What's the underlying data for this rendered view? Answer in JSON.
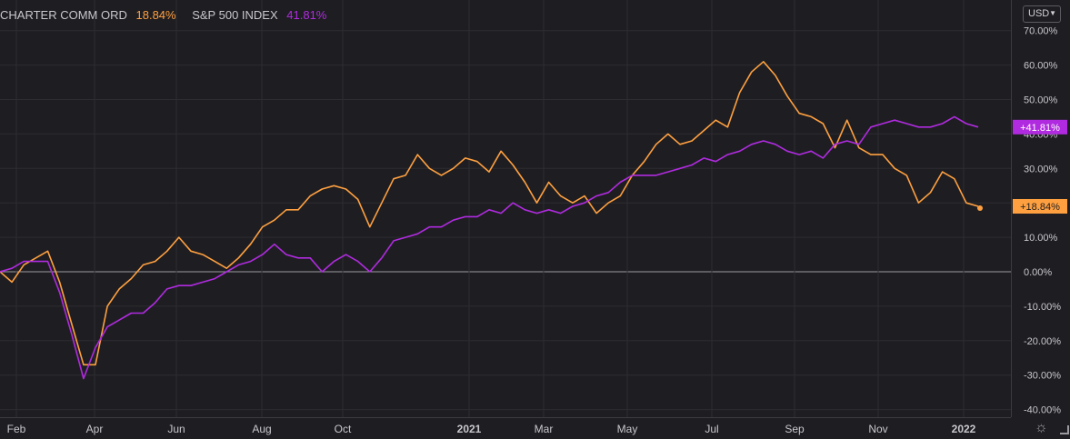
{
  "legend": [
    {
      "name": "CHARTER COMM ORD",
      "value": "18.84%",
      "color": "#ffa040"
    },
    {
      "name": "S&P 500 INDEX",
      "value": "41.81%",
      "color": "#b02bdf"
    }
  ],
  "currency": {
    "label": "USD",
    "icon": "chevron-down-icon"
  },
  "settings_icon": "gear-icon",
  "chart_data": {
    "type": "line",
    "xlabel": "",
    "ylabel": "",
    "x_ticks": [
      "Feb",
      "Apr",
      "Jun",
      "Aug",
      "Oct",
      "2021",
      "Mar",
      "May",
      "Jul",
      "Sep",
      "Nov",
      "2022"
    ],
    "y_ticks": [
      "70.00%",
      "60.00%",
      "50.00%",
      "40.00%",
      "30.00%",
      "20.00%",
      "10.00%",
      "0.00%",
      "-10.00%",
      "-20.00%",
      "-30.00%",
      "-40.00%"
    ],
    "ylim": [
      -40,
      70
    ],
    "grid": true,
    "legend_position": "top-left",
    "date_range": [
      "2020-01",
      "2022-01"
    ],
    "series": [
      {
        "name": "CHARTER COMM ORD",
        "color": "#ffa040",
        "last_label": "+18.84%",
        "values": [
          0,
          -3,
          2,
          4,
          6,
          -3,
          -15,
          -27,
          -27,
          -10,
          -5,
          -2,
          2,
          3,
          6,
          10,
          6,
          5,
          3,
          1,
          4,
          8,
          13,
          15,
          18,
          18,
          22,
          24,
          25,
          24,
          21,
          13,
          20,
          27,
          28,
          34,
          30,
          28,
          30,
          33,
          32,
          29,
          35,
          31,
          26,
          20,
          26,
          22,
          20,
          22,
          17,
          20,
          22,
          28,
          32,
          37,
          40,
          37,
          38,
          41,
          44,
          42,
          52,
          58,
          61,
          57,
          51,
          46,
          45,
          43,
          36,
          44,
          36,
          34,
          34,
          30,
          28,
          20,
          23,
          29,
          27,
          20,
          19
        ]
      },
      {
        "name": "S&P 500 INDEX",
        "color": "#b02bdf",
        "last_label": "+41.81%",
        "values": [
          0,
          1,
          3,
          3,
          3,
          -6,
          -18,
          -31,
          -22,
          -16,
          -14,
          -12,
          -12,
          -9,
          -5,
          -4,
          -4,
          -3,
          -2,
          0,
          2,
          3,
          5,
          8,
          5,
          4,
          4,
          0,
          3,
          5,
          3,
          0,
          4,
          9,
          10,
          11,
          13,
          13,
          15,
          16,
          16,
          18,
          17,
          20,
          18,
          17,
          18,
          17,
          19,
          20,
          22,
          23,
          26,
          28,
          28,
          28,
          29,
          30,
          31,
          33,
          32,
          34,
          35,
          37,
          38,
          37,
          35,
          34,
          35,
          33,
          37,
          38,
          37,
          42,
          43,
          44,
          43,
          42,
          42,
          43,
          45,
          43,
          42
        ]
      }
    ]
  }
}
